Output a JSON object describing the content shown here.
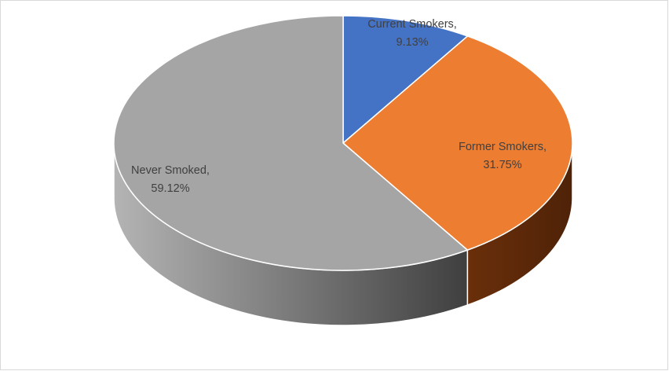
{
  "chart_data": {
    "type": "pie",
    "title": "",
    "style": "3d",
    "legend": "none",
    "slices": [
      {
        "name": "Current Smokers",
        "value": 9.13,
        "label_name": "Current Smokers,",
        "label_value": "9.13%",
        "color": "#4472c4",
        "side_color": "#2f528f"
      },
      {
        "name": "Former Smokers",
        "value": 31.75,
        "label_name": "Former Smokers,",
        "label_value": "31.75%",
        "color": "#ed7d31",
        "side_color": "#843c0c"
      },
      {
        "name": "Never Smoked",
        "value": 59.12,
        "label_name": "Never Smoked,",
        "label_value": "59.12%",
        "color": "#a5a5a5",
        "side_color": "#6b6b6b"
      }
    ]
  }
}
